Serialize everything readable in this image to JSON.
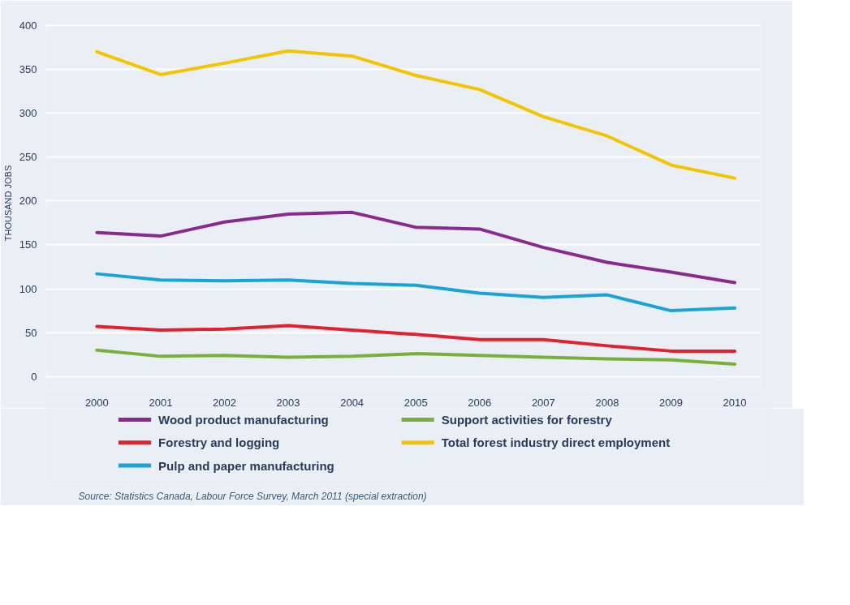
{
  "chart_data": {
    "type": "line",
    "ylabel": "THOUSAND JOBS",
    "categories": [
      "2000",
      "2001",
      "2002",
      "2003",
      "2004",
      "2005",
      "2006",
      "2007",
      "2008",
      "2009",
      "2010"
    ],
    "series": [
      {
        "name": "Wood product manufacturing",
        "color": "#8b2a8e",
        "values": [
          164,
          160,
          176,
          185,
          187,
          170,
          168,
          147,
          130,
          119,
          107
        ]
      },
      {
        "name": "Support activities for forestry",
        "color": "#7ab03a",
        "values": [
          30,
          23,
          24,
          22,
          23,
          26,
          24,
          22,
          20,
          19,
          14
        ]
      },
      {
        "name": "Forestry and logging",
        "color": "#e3202d",
        "values": [
          57,
          53,
          54,
          58,
          53,
          48,
          42,
          42,
          35,
          29,
          29
        ]
      },
      {
        "name": "Total forest industry direct employment",
        "color": "#f5c400",
        "values": [
          370,
          344,
          357,
          371,
          365,
          343,
          327,
          296,
          274,
          241,
          226
        ]
      },
      {
        "name": "Pulp and paper manufacturing",
        "color": "#1ba3d8",
        "values": [
          117,
          110,
          109,
          110,
          106,
          104,
          95,
          90,
          93,
          75,
          78
        ]
      }
    ],
    "ylim": [
      -15,
      410
    ],
    "yticks": [
      0,
      50,
      100,
      150,
      200,
      250,
      300,
      350,
      400
    ],
    "grid": "y",
    "legend": "bottom",
    "marker": "none",
    "line_style": "solid",
    "annotations": [
      "Source: Statistics Canada, Labour Force Survey, March 2011 (special extraction)"
    ]
  }
}
